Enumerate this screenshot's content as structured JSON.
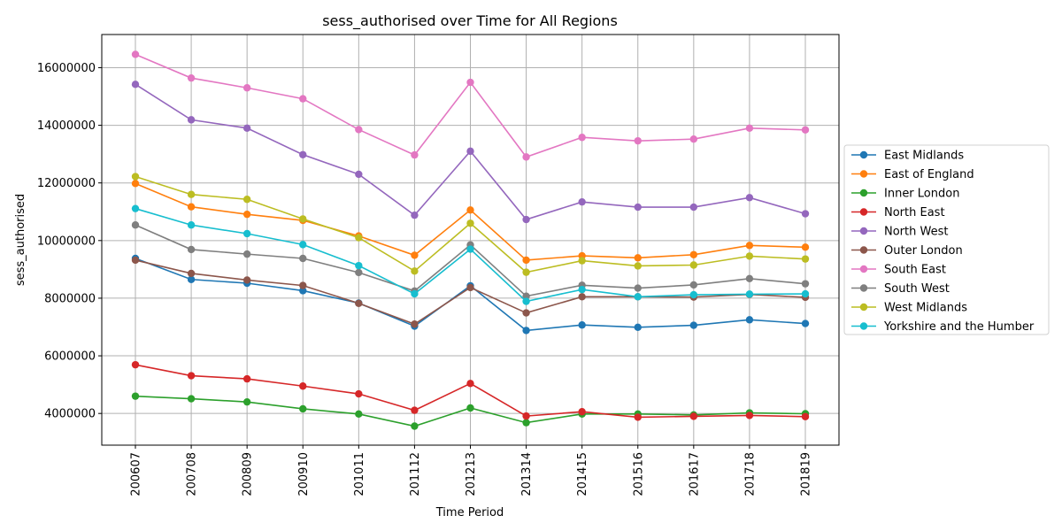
{
  "chart_data": {
    "type": "line",
    "title": "sess_authorised over Time for All Regions",
    "xlabel": "Time Period",
    "ylabel": "sess_authorised",
    "categories": [
      "200607",
      "200708",
      "200809",
      "200910",
      "201011",
      "201112",
      "201213",
      "201314",
      "201415",
      "201516",
      "201617",
      "201718",
      "201819"
    ],
    "ylim": [
      2900000,
      17150000
    ],
    "yticks": [
      4000000,
      6000000,
      8000000,
      10000000,
      12000000,
      14000000,
      16000000
    ],
    "ytick_labels": [
      "4000000",
      "6000000",
      "8000000",
      "10000000",
      "12000000",
      "14000000",
      "16000000"
    ],
    "grid": true,
    "legend_position": "right",
    "series": [
      {
        "name": "East Midlands",
        "color": "#1f77b4",
        "values": [
          9380000,
          8650000,
          8520000,
          8260000,
          7830000,
          7030000,
          8430000,
          6880000,
          7070000,
          6990000,
          7060000,
          7250000,
          7120000
        ]
      },
      {
        "name": "East of England",
        "color": "#ff7f0e",
        "values": [
          11980000,
          11170000,
          10910000,
          10700000,
          10160000,
          9490000,
          11060000,
          9320000,
          9470000,
          9400000,
          9510000,
          9830000,
          9770000
        ]
      },
      {
        "name": "Inner London",
        "color": "#2ca02c",
        "values": [
          4600000,
          4510000,
          4400000,
          4160000,
          3980000,
          3560000,
          4190000,
          3680000,
          3980000,
          3980000,
          3950000,
          4020000,
          3990000
        ]
      },
      {
        "name": "North East",
        "color": "#d62728",
        "values": [
          5690000,
          5310000,
          5200000,
          4950000,
          4680000,
          4110000,
          5040000,
          3910000,
          4060000,
          3870000,
          3900000,
          3930000,
          3890000
        ]
      },
      {
        "name": "North West",
        "color": "#9467bd",
        "values": [
          15420000,
          14190000,
          13900000,
          12980000,
          12300000,
          10880000,
          13100000,
          10730000,
          11340000,
          11160000,
          11160000,
          11490000,
          10930000
        ]
      },
      {
        "name": "Outer London",
        "color": "#8c564b",
        "values": [
          9320000,
          8860000,
          8630000,
          8440000,
          7820000,
          7100000,
          8370000,
          7490000,
          8050000,
          8050000,
          8040000,
          8130000,
          8030000
        ]
      },
      {
        "name": "South East",
        "color": "#e377c2",
        "values": [
          16460000,
          15640000,
          15300000,
          14920000,
          13850000,
          12970000,
          15490000,
          12900000,
          13580000,
          13460000,
          13520000,
          13900000,
          13840000
        ]
      },
      {
        "name": "South West",
        "color": "#7f7f7f",
        "values": [
          10540000,
          9690000,
          9530000,
          9380000,
          8890000,
          8250000,
          9850000,
          8070000,
          8450000,
          8350000,
          8460000,
          8680000,
          8500000
        ]
      },
      {
        "name": "West Midlands",
        "color": "#bcbd22",
        "values": [
          12220000,
          11600000,
          11430000,
          10750000,
          10100000,
          8940000,
          10600000,
          8900000,
          9300000,
          9120000,
          9150000,
          9460000,
          9360000
        ]
      },
      {
        "name": "Yorkshire and the Humber",
        "color": "#17becf",
        "values": [
          11110000,
          10540000,
          10240000,
          9860000,
          9130000,
          8150000,
          9700000,
          7890000,
          8300000,
          8050000,
          8120000,
          8140000,
          8150000
        ]
      }
    ]
  }
}
